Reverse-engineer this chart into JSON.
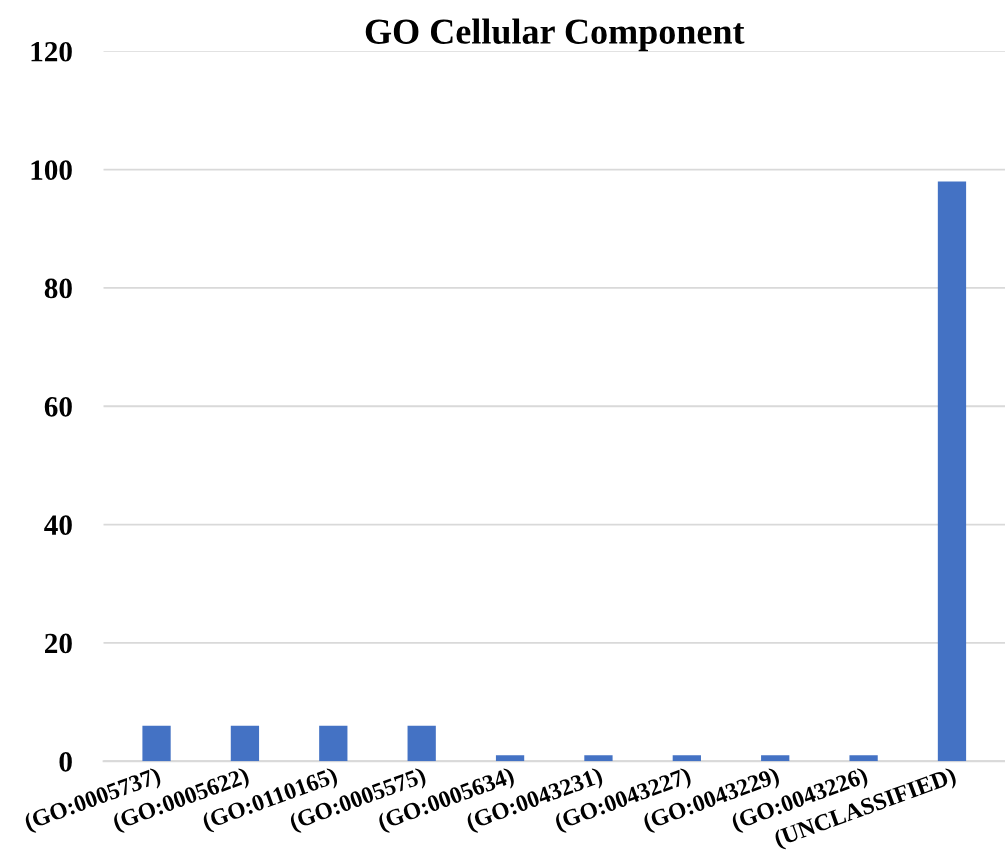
{
  "chart_data": {
    "type": "bar",
    "title": "GO Cellular Component",
    "categories": [
      "(GO:0005737)",
      "(GO:0005622)",
      "(GO:0110165)",
      "(GO:0005575)",
      "(GO:0005634)",
      "(GO:0043231)",
      "(GO:0043227)",
      "(GO:0043229)",
      "(GO:0043226)",
      "(UNCLASSIFIED)"
    ],
    "values": [
      6,
      6,
      6,
      6,
      1,
      1,
      1,
      1,
      1,
      98
    ],
    "color": "#4472c4",
    "ylim": [
      0,
      120
    ],
    "yticks": [
      0,
      20,
      40,
      60,
      80,
      100,
      120
    ],
    "grid": "y"
  }
}
